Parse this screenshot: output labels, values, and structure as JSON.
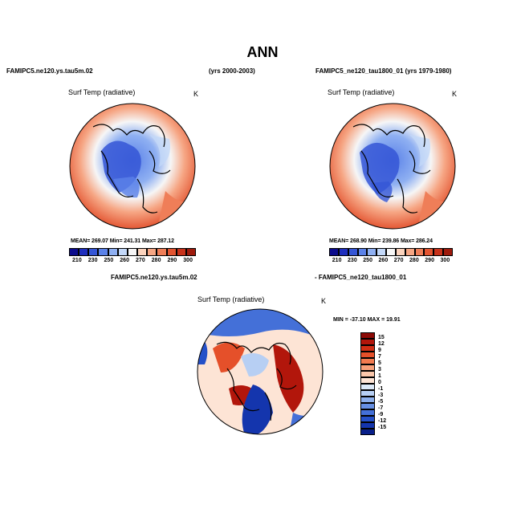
{
  "title": "ANN",
  "panels": [
    {
      "case_label": "FAMIPC5.ne120.ys.tau5m.02",
      "years_label": "(yrs 2000-2003)",
      "variable": "Surf Temp (radiative)",
      "units": "K",
      "stats_text": "MEAN= 269.07   Min= 241.31   Max= 287.12",
      "mean": 269.07,
      "min": 241.31,
      "max": 287.12
    },
    {
      "case_label": "FAMIPC5_ne120_tau1800_01 (yrs 1979-1980)",
      "variable": "Surf Temp (radiative)",
      "units": "K",
      "stats_text": "MEAN= 268.90   Min= 239.86   Max= 286.24",
      "mean": 268.9,
      "min": 239.86,
      "max": 286.24
    },
    {
      "case_label_left": "FAMIPC5.ne120.ys.tau5m.02",
      "case_label_right": "- FAMIPC5_ne120_tau1800_01",
      "variable": "Surf Temp (radiative)",
      "units": "K",
      "stats_text": "MIN = -37.10  MAX =   19.91",
      "min": -37.1,
      "max": 19.91
    }
  ],
  "abs_colorbar": {
    "ticks": [
      "210",
      "230",
      "250",
      "260",
      "270",
      "280",
      "290",
      "300"
    ],
    "colors": [
      "#0a0a8c",
      "#1f2fbe",
      "#3556d6",
      "#5b82e8",
      "#8fb0f2",
      "#c3d8f8",
      "#f6f6f6",
      "#fbd3bd",
      "#f6a684",
      "#ef7e58",
      "#e35431",
      "#c8321b",
      "#9e1a0c"
    ]
  },
  "diff_colorbar": {
    "ticks": [
      "15",
      "12",
      "9",
      "7",
      "5",
      "3",
      "1",
      "0",
      "-1",
      "-3",
      "-5",
      "-7",
      "-9",
      "-12",
      "-15"
    ],
    "colors": [
      "#8c0a06",
      "#b2160b",
      "#d12e14",
      "#e5502a",
      "#f27a4f",
      "#f7a07a",
      "#fac6aa",
      "#fde4d5",
      "#dce9f8",
      "#b7cff3",
      "#8eb0ec",
      "#6790e3",
      "#4470d8",
      "#2550c8",
      "#1435ad",
      "#081f8a"
    ]
  }
}
